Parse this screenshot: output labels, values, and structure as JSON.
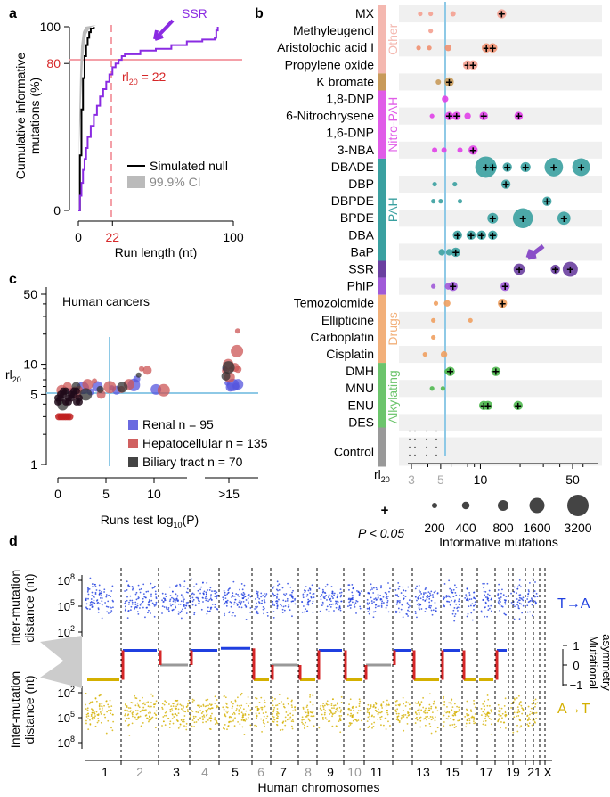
{
  "colors": {
    "purple": "#8a2be2",
    "pink": "#f08080",
    "red": "#d62728",
    "blue": "#1f3fe0",
    "gold": "#d4b000",
    "grey": "#999999",
    "teal": "#3aa0a0",
    "lightblue": "#8ec9e6",
    "other": "#f4b8b0",
    "kbromate": "#c89a5a",
    "nitropah": "#e05ce8",
    "pah": "#3aa0a0",
    "ssr": "#6a3fa0",
    "phip": "#a05ad8",
    "drugs": "#f2b07a",
    "alkylating": "#6cc46c",
    "control": "#999999"
  },
  "panels": {
    "a": {
      "letter": "a",
      "ylabel_line1": "Cumulative informative",
      "ylabel_line2": "mutations (%)",
      "xlabel": "Run length (nt)",
      "yticks": [
        "0",
        "80",
        "100"
      ],
      "xticks": [
        "0",
        "22",
        "100"
      ],
      "annotation_ssr": "SSR",
      "rl_label": "rl",
      "rl_sub": "20",
      "rl_value": " = 22",
      "legend": [
        {
          "label": "Simulated null"
        },
        {
          "label": "99.9% CI"
        }
      ]
    },
    "b": {
      "letter": "b",
      "rows": [
        "MX",
        "Methyleugenol",
        "Aristolochic acid I",
        "Propylene oxide",
        "K bromate",
        "1,8-DNP",
        "6-Nitrochrysene",
        "1,6-DNP",
        "3-NBA",
        "DBADE",
        "DBP",
        "DBPDE",
        "BPDE",
        "DBA",
        "BaP",
        "SSR",
        "PhIP",
        "Temozolomide",
        "Ellipticine",
        "Carboplatin",
        "Cisplatin",
        "DMH",
        "MNU",
        "ENU",
        "DES",
        "Control"
      ],
      "groups": [
        {
          "label": "Other"
        },
        {
          "label": "Nitro-PAH"
        },
        {
          "label": "PAH"
        },
        {
          "label": "Drugs"
        },
        {
          "label": "Alkylating"
        }
      ],
      "xticks": [
        "3",
        "5",
        "10",
        "50"
      ],
      "rl_label": "rl",
      "rl_sub": "20",
      "sig_label": "P < 0.05",
      "size_legend": [
        "200",
        "400",
        "800",
        "1600",
        "3200"
      ],
      "size_title": "Informative mutations"
    },
    "c": {
      "letter": "c",
      "title": "Human cancers",
      "yticks": [
        "1",
        "5",
        "10",
        "50"
      ],
      "xticks": [
        "0",
        "5",
        "10",
        ">15"
      ],
      "ylabel": "rl",
      "ylabel_sub": "20",
      "xlabel": "Runs test log",
      "xlabel_sub": "10",
      "xlabel_tail": "(P)",
      "legend": [
        {
          "label": "Renal n = 95"
        },
        {
          "label": "Hepatocellular n = 135"
        },
        {
          "label": "Biliary tract n = 70"
        }
      ]
    },
    "d": {
      "letter": "d",
      "top_ylabel_line1": "Inter-mutation",
      "top_ylabel_line2": "distance (nt)",
      "bottom_ylabel_line1": "Inter-mutation",
      "bottom_ylabel_line2": "distance (nt)",
      "top_ticks": [
        "10^8",
        "10^5",
        "10^2"
      ],
      "bottom_ticks": [
        "10^2",
        "10^5",
        "10^8"
      ],
      "top_label": "T→A",
      "bottom_label": "A→T",
      "asym_label_line1": "Mutational",
      "asym_label_line2": "asymmetry",
      "asym_ticks": [
        "1",
        "0",
        "−1"
      ],
      "xlabel": "Human chromosomes",
      "chromosomes": [
        "1",
        "2",
        "3",
        "4",
        "5",
        "6",
        "7",
        "8",
        "9",
        "10",
        "11",
        "13",
        "15",
        "17",
        "19",
        "21",
        "X"
      ]
    }
  },
  "chart_data": [
    {
      "id": "a",
      "type": "line",
      "title": "",
      "xlabel": "Run length (nt)",
      "ylabel": "Cumulative informative mutations (%)",
      "xlim": [
        -2,
        100
      ],
      "ylim": [
        0,
        100
      ],
      "series": [
        {
          "name": "Simulated null",
          "x": [
            0,
            1,
            2,
            3,
            4,
            5,
            6,
            7,
            8,
            10
          ],
          "y": [
            0,
            30,
            55,
            72,
            84,
            90,
            94,
            97,
            99,
            100
          ]
        },
        {
          "name": "SSR",
          "x": [
            0,
            1,
            2,
            3,
            4,
            5,
            6,
            8,
            10,
            12,
            14,
            16,
            18,
            20,
            22,
            24,
            26,
            28,
            30,
            40,
            50,
            60,
            70,
            80,
            88,
            89,
            90
          ],
          "y": [
            0,
            8,
            15,
            22,
            28,
            34,
            40,
            46,
            52,
            57,
            62,
            66,
            70,
            74,
            78,
            80,
            82,
            84,
            85,
            87,
            88,
            90,
            92,
            93,
            94,
            98,
            100
          ]
        }
      ],
      "rl20": 22
    },
    {
      "id": "b",
      "type": "scatter",
      "xlabel": "rl20",
      "scale": "log",
      "xlim": [
        3,
        70
      ],
      "control_rl20": 5.2,
      "samples": [
        {
          "row": "MX",
          "rl": [
            3.5,
            4.2,
            6.2,
            14.5
          ],
          "n": [
            150,
            150,
            200,
            600
          ],
          "sig": [
            false,
            false,
            false,
            true
          ]
        },
        {
          "row": "Methyleugenol",
          "rl": [
            4.2
          ],
          "n": [
            150
          ],
          "sig": [
            false
          ]
        },
        {
          "row": "Aristolochic acid I",
          "rl": [
            3.4,
            4.1,
            5.7,
            11.1,
            12.4
          ],
          "n": [
            150,
            150,
            300,
            600,
            600
          ],
          "sig": [
            false,
            false,
            false,
            true,
            true
          ]
        },
        {
          "row": "Propylene oxide",
          "rl": [
            8.0,
            8.8
          ],
          "n": [
            600,
            600
          ],
          "sig": [
            true,
            true
          ]
        },
        {
          "row": "K bromate",
          "rl": [
            4.8,
            5.8
          ],
          "n": [
            200,
            600
          ],
          "sig": [
            false,
            true
          ]
        },
        {
          "row": "1,8-DNP",
          "rl": [
            5.4
          ],
          "n": [
            300
          ],
          "sig": [
            false
          ]
        },
        {
          "row": "6-Nitrochrysene",
          "rl": [
            4.3,
            5.8,
            6.6,
            8.0,
            10.6,
            19.5
          ],
          "n": [
            150,
            500,
            500,
            300,
            500,
            500
          ],
          "sig": [
            false,
            true,
            true,
            false,
            true,
            true
          ]
        },
        {
          "row": "1,6-DNP",
          "rl": [],
          "n": [],
          "sig": []
        },
        {
          "row": "3-NBA",
          "rl": [
            4.5,
            5.3,
            7.0,
            8.8
          ],
          "n": [
            200,
            200,
            200,
            600
          ],
          "sig": [
            false,
            false,
            false,
            true
          ]
        },
        {
          "row": "DBADE",
          "rl": [
            11.0,
            12.4,
            16.0,
            22.0,
            36.0,
            58.0
          ],
          "n": [
            3200,
            500,
            600,
            700,
            2400,
            2200
          ],
          "sig": [
            true,
            true,
            true,
            true,
            true,
            true
          ]
        },
        {
          "row": "DBP",
          "rl": [
            4.5,
            6.4,
            15.6
          ],
          "n": [
            150,
            150,
            600
          ],
          "sig": [
            false,
            false,
            true
          ]
        },
        {
          "row": "DBPDE",
          "rl": [
            4.4,
            5.0,
            7.0,
            32.0
          ],
          "n": [
            150,
            150,
            150,
            600
          ],
          "sig": [
            false,
            false,
            false,
            true
          ]
        },
        {
          "row": "BPDE",
          "rl": [
            12.4,
            21.0,
            43.0
          ],
          "n": [
            800,
            2800,
            1200
          ],
          "sig": [
            true,
            true,
            true
          ]
        },
        {
          "row": "DBA",
          "rl": [
            6.7,
            8.5,
            10.2,
            12.4
          ],
          "n": [
            600,
            600,
            600,
            600
          ],
          "sig": [
            true,
            true,
            true,
            true
          ]
        },
        {
          "row": "BaP",
          "rl": [
            5.1,
            5.8,
            6.5
          ],
          "n": [
            300,
            300,
            600
          ],
          "sig": [
            false,
            false,
            true
          ]
        },
        {
          "row": "SSR",
          "rl": [
            19.7,
            37.0,
            48.0
          ],
          "n": [
            900,
            600,
            1600
          ],
          "sig": [
            true,
            true,
            true
          ]
        },
        {
          "row": "PhIP",
          "rl": [
            4.4,
            5.7,
            6.2,
            15.4
          ],
          "n": [
            150,
            300,
            600,
            600
          ],
          "sig": [
            false,
            false,
            true,
            true
          ]
        },
        {
          "row": "Temozolomide",
          "rl": [
            4.6,
            5.6,
            14.7
          ],
          "n": [
            150,
            300,
            600
          ],
          "sig": [
            false,
            false,
            true
          ]
        },
        {
          "row": "Ellipticine",
          "rl": [
            4.4,
            8.4
          ],
          "n": [
            150,
            150
          ],
          "sig": [
            false,
            false
          ]
        },
        {
          "row": "Carboplatin",
          "rl": [
            4.4
          ],
          "n": [
            150
          ],
          "sig": [
            false
          ]
        },
        {
          "row": "Cisplatin",
          "rl": [
            3.8,
            5.3
          ],
          "n": [
            150,
            300
          ],
          "sig": [
            false,
            false
          ]
        },
        {
          "row": "DMH",
          "rl": [
            5.6,
            5.9,
            13.1
          ],
          "n": [
            200,
            600,
            600
          ],
          "sig": [
            false,
            true,
            true
          ]
        },
        {
          "row": "MNU",
          "rl": [
            4.3,
            5.2
          ],
          "n": [
            150,
            150
          ],
          "sig": [
            false,
            false
          ]
        },
        {
          "row": "ENU",
          "rl": [
            10.6,
            11.4,
            19.3
          ],
          "n": [
            600,
            600,
            600
          ],
          "sig": [
            true,
            true,
            true
          ]
        },
        {
          "row": "DES",
          "rl": [],
          "n": [],
          "sig": []
        }
      ]
    },
    {
      "id": "c",
      "type": "scatter",
      "title": "Human cancers",
      "xlabel": "Runs test log10(P)",
      "ylabel": "rl20",
      "xlim": [
        0,
        20
      ],
      "ylim": [
        1,
        50
      ],
      "reference_x": 5.3,
      "reference_y": 5.2,
      "series": [
        {
          "name": "Renal",
          "n": 95,
          "points": [
            [
              0.3,
              5.0
            ],
            [
              1.5,
              5.3
            ],
            [
              2.6,
              5.8
            ],
            [
              3.4,
              5.3
            ],
            [
              4.1,
              6.0
            ],
            [
              5.6,
              5.8
            ],
            [
              6.1,
              5.5
            ],
            [
              7.9,
              6.2
            ],
            [
              8.2,
              7.1
            ],
            [
              10.2,
              5.6
            ],
            [
              16.6,
              6.5
            ],
            [
              17.5,
              5.9
            ],
            [
              18.3,
              6.2
            ],
            [
              19.2,
              6.0
            ],
            [
              19.8,
              6.3
            ],
            [
              15.9,
              9.0
            ]
          ]
        },
        {
          "name": "Hepatocellular",
          "n": 135,
          "points": [
            [
              0.4,
              5.5
            ],
            [
              0.6,
              3.0
            ],
            [
              1.0,
              6.0
            ],
            [
              1.8,
              5.2
            ],
            [
              2.2,
              5.6
            ],
            [
              3.1,
              6.3
            ],
            [
              3.8,
              6.8
            ],
            [
              4.5,
              5.0
            ],
            [
              5.4,
              5.9
            ],
            [
              6.6,
              5.6
            ],
            [
              7.4,
              6.3
            ],
            [
              8.7,
              9.0
            ],
            [
              9.3,
              8.7
            ],
            [
              11.0,
              5.5
            ],
            [
              16.1,
              8.6
            ],
            [
              16.9,
              10.0
            ],
            [
              17.8,
              8.9
            ],
            [
              18.9,
              9.3
            ],
            [
              19.5,
              13.5
            ],
            [
              19.8,
              8.9
            ],
            [
              17.3,
              7.4
            ],
            [
              19.7,
              21.5
            ]
          ]
        },
        {
          "name": "Biliary tract",
          "n": 70,
          "points": [
            [
              0.2,
              4.3
            ],
            [
              0.5,
              3.9
            ],
            [
              0.8,
              5.2
            ],
            [
              1.9,
              6.0
            ],
            [
              2.9,
              5.0
            ],
            [
              4.4,
              5.6
            ],
            [
              6.7,
              5.9
            ],
            [
              8.4,
              7.8
            ],
            [
              16.2,
              7.6
            ],
            [
              17.0,
              9.3
            ]
          ]
        }
      ]
    },
    {
      "id": "d",
      "type": "scatter",
      "xlabel": "Human chromosomes",
      "categories": [
        "1",
        "2",
        "3",
        "4",
        "5",
        "6",
        "7",
        "8",
        "9",
        "10",
        "11",
        "13",
        "15",
        "17",
        "19",
        "21",
        "X"
      ],
      "asymmetry": [
        -0.75,
        0.75,
        0.0,
        0.75,
        0.85,
        -0.75,
        0.0,
        -0.75,
        0.75,
        -0.75,
        0.0,
        0.75,
        -0.75,
        0.75,
        -0.75,
        -0.75,
        0.75
      ],
      "top_series": "T→A",
      "bottom_series": "A→T"
    }
  ]
}
